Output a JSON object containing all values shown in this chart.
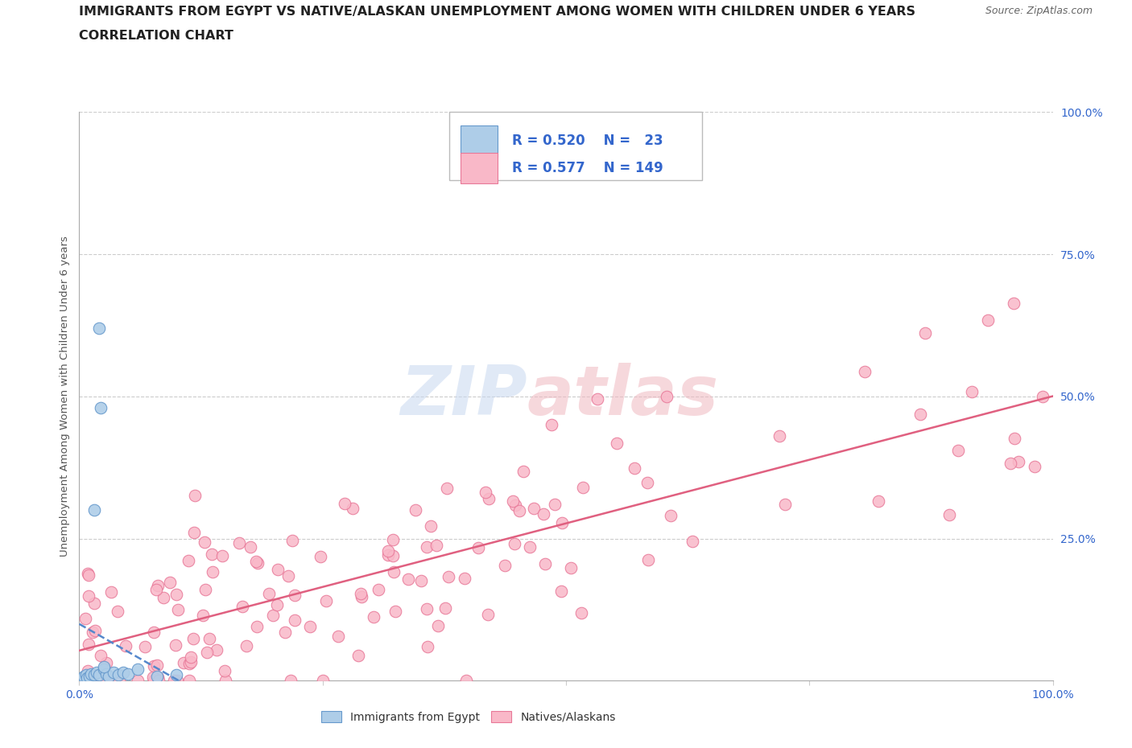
{
  "title_line1": "IMMIGRANTS FROM EGYPT VS NATIVE/ALASKAN UNEMPLOYMENT AMONG WOMEN WITH CHILDREN UNDER 6 YEARS",
  "title_line2": "CORRELATION CHART",
  "source_text": "Source: ZipAtlas.com",
  "ylabel": "Unemployment Among Women with Children Under 6 years",
  "egypt_R": "0.520",
  "egypt_N": "23",
  "native_R": "0.577",
  "native_N": "149",
  "egypt_face_color": "#aecde8",
  "egypt_edge_color": "#6699cc",
  "native_face_color": "#f9b8c8",
  "native_edge_color": "#e87898",
  "native_line_color": "#e06080",
  "egypt_line_color": "#5588cc",
  "legend_text_color": "#3366cc",
  "title_color": "#222222",
  "axis_tick_color": "#3366cc",
  "source_color": "#666666",
  "ylabel_color": "#555555",
  "watermark_color_left": "#c8d8f0",
  "watermark_color_right": "#f0b8c0",
  "grid_color": "#cccccc",
  "bottom_legend_label1": "Immigrants from Egypt",
  "bottom_legend_label2": "Natives/Alaskans",
  "xtick_show": [
    0.0,
    0.25,
    0.5,
    0.75,
    1.0
  ],
  "xtick_labels_show": [
    "0.0%",
    "",
    "",
    "",
    "100.0%"
  ],
  "ytick_right": [
    0.25,
    0.5,
    0.75,
    1.0
  ],
  "ytick_right_labels": [
    "25.0%",
    "50.0%",
    "75.0%",
    "100.0%"
  ]
}
